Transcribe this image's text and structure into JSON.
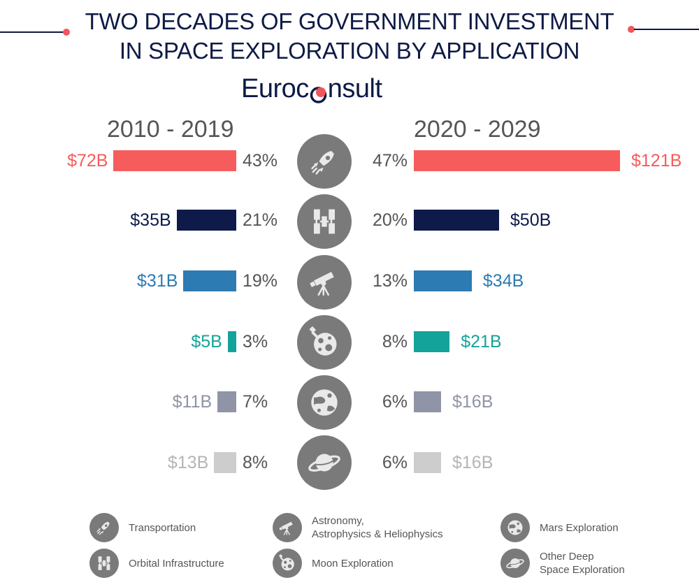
{
  "title": {
    "line1": "TWO DECADES OF GOVERNMENT INVESTMENT",
    "line2": "IN SPACE EXPLORATION BY APPLICATION"
  },
  "brand": {
    "part1": "Euroc",
    "part2": "nsult"
  },
  "colors": {
    "Transportation": "#f65c5c",
    "Orbital Infrastructure": "#0d1a4a",
    "Astronomy": "#2c7bb2",
    "Moon Exploration": "#14a39a",
    "Mars Exploration": "#8f94a6",
    "Other Deep Space Exploration": "#cdcdcd",
    "icon_bg": "#7a7a7a",
    "title_dot": "#f0565a"
  },
  "chart_data": {
    "type": "bar",
    "periods": [
      "2010 - 2019",
      "2020 - 2029"
    ],
    "unit": "$B",
    "categories": [
      "Transportation",
      "Orbital Infrastructure",
      "Astronomy, Astrophysics & Heliophysics",
      "Moon Exploration",
      "Mars Exploration",
      "Other Deep Space Exploration"
    ],
    "series": [
      {
        "name": "2010 - 2019",
        "values": [
          72,
          35,
          31,
          5,
          11,
          13
        ],
        "value_labels": [
          "$72B",
          "$35B",
          "$31B",
          "$5B",
          "$11B",
          "$13B"
        ],
        "percent_labels": [
          "43%",
          "21%",
          "19%",
          "3%",
          "7%",
          "8%"
        ]
      },
      {
        "name": "2020 - 2029",
        "values": [
          121,
          50,
          34,
          21,
          16,
          16
        ],
        "value_labels": [
          "$121B",
          "$50B",
          "$34B",
          "$21B",
          "$16B",
          "$16B"
        ],
        "percent_labels": [
          "47%",
          "20%",
          "13%",
          "8%",
          "6%",
          "6%"
        ]
      }
    ],
    "icons": [
      "rocket-icon",
      "space-station-icon",
      "telescope-icon",
      "moon-icon",
      "mars-icon",
      "saturn-icon"
    ]
  },
  "legend": [
    {
      "label": "Transportation",
      "icon": "rocket-icon"
    },
    {
      "label": "Orbital Infrastructure",
      "icon": "space-station-icon"
    },
    {
      "label": "Astronomy,\nAstrophysics & Heliophysics",
      "icon": "telescope-icon"
    },
    {
      "label": "Moon Exploration",
      "icon": "moon-icon"
    },
    {
      "label": "Mars Exploration",
      "icon": "mars-icon"
    },
    {
      "label": "Other Deep\nSpace Exploration",
      "icon": "saturn-icon"
    }
  ]
}
